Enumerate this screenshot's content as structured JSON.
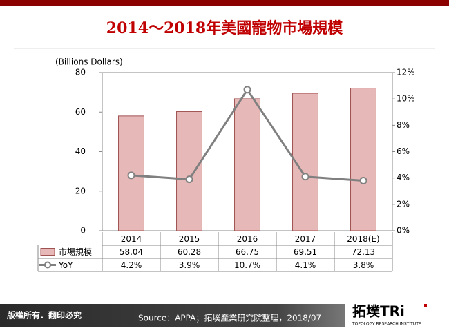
{
  "chart_data": {
    "type": "combo",
    "title": "2014～2018年美國寵物市場規模",
    "y_label": "(Billions Dollars)",
    "categories": [
      "2014",
      "2015",
      "2016",
      "2017",
      "2018(E)"
    ],
    "series": [
      {
        "name": "市場規模",
        "type": "bar",
        "color": "#e6b8b7",
        "values": [
          58.04,
          60.28,
          66.75,
          69.51,
          72.13
        ]
      },
      {
        "name": "YoY",
        "type": "line",
        "axis": "y2",
        "color": "#808080",
        "values": [
          4.2,
          3.9,
          10.7,
          4.1,
          3.8
        ],
        "value_labels": [
          "4.2%",
          "3.9%",
          "10.7%",
          "4.1%",
          "3.8%"
        ]
      }
    ],
    "ylim": [
      0,
      80
    ],
    "yticks": [
      0,
      20,
      40,
      60,
      80
    ],
    "y2lim": [
      0,
      12
    ],
    "y2ticks": [
      {
        "value": 0,
        "label": "0%"
      },
      {
        "value": 2,
        "label": "2%"
      },
      {
        "value": 4,
        "label": "4%"
      },
      {
        "value": 6,
        "label": "6%"
      },
      {
        "value": 8,
        "label": "8%"
      },
      {
        "value": 10,
        "label": "10%"
      },
      {
        "value": 12,
        "label": "12%"
      }
    ]
  },
  "footer": {
    "copyright": "版權所有．翻印必究",
    "source": "Source：APPA；拓墣產業研究院整理，2018/07",
    "logo": "拓墣TRi",
    "logo_sub": "TOPOLOGY RESEARCH INSTITUTE"
  }
}
